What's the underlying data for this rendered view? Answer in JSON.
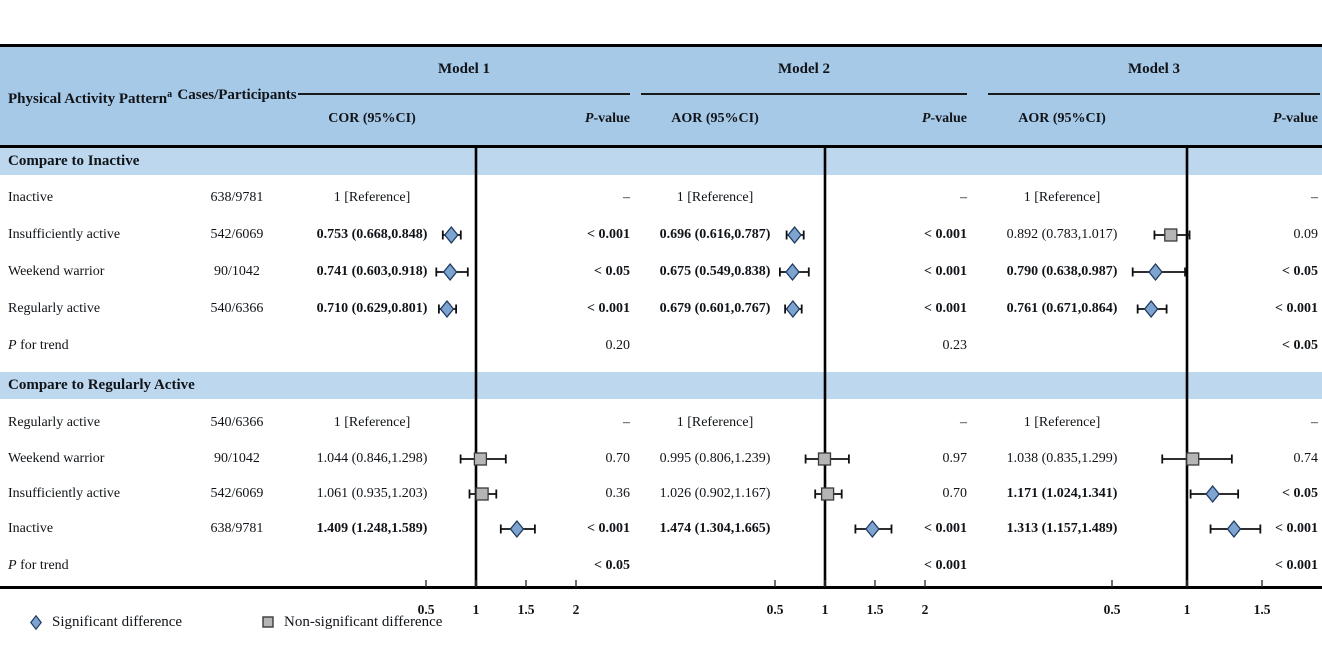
{
  "header": {
    "activity_label": "Physical Activity Pattern",
    "activity_sup": "a",
    "cases_label": "Cases/Participants",
    "p_italic": "P",
    "p_rest": "-value",
    "models": [
      {
        "label": "Model 1",
        "or_header": "COR (95%CI)"
      },
      {
        "label": "Model 2",
        "or_header": "AOR (95%CI)"
      },
      {
        "label": "Model 3",
        "or_header": "AOR (95%CI)"
      }
    ]
  },
  "labels": {
    "trend_p": "P",
    "trend_rest": " for trend"
  },
  "sections": [
    {
      "title": "Compare to Inactive",
      "rows": [
        {
          "label": "Inactive",
          "cases": "638/9781",
          "m1or": "1 [Reference]",
          "m1p": "–",
          "m2or": "1 [Reference]",
          "m2p": "–",
          "m3or": "1 [Reference]",
          "m3p": "–"
        },
        {
          "label": "Insufficiently active",
          "cases": "542/6069",
          "m1or": "0.753 (0.668,0.848)",
          "m1p": "< 0.001",
          "m2or": "0.696 (0.616,0.787)",
          "m2p": "< 0.001",
          "m3or": "0.892 (0.783,1.017)",
          "m3p": "0.09"
        },
        {
          "label": "Weekend warrior",
          "cases": "90/1042",
          "m1or": "0.741 (0.603,0.918)",
          "m1p": "< 0.05",
          "m2or": "0.675 (0.549,0.838)",
          "m2p": "< 0.001",
          "m3or": "0.790 (0.638,0.987)",
          "m3p": "< 0.05"
        },
        {
          "label": "Regularly active",
          "cases": "540/6366",
          "m1or": "0.710 (0.629,0.801)",
          "m1p": "< 0.001",
          "m2or": "0.679 (0.601,0.767)",
          "m2p": "< 0.001",
          "m3or": "0.761 (0.671,0.864)",
          "m3p": "< 0.001"
        }
      ],
      "trend": {
        "p1": "0.20",
        "p2": "0.23",
        "p3": "< 0.05"
      }
    },
    {
      "title": "Compare to Regularly Active",
      "rows": [
        {
          "label": "Regularly active",
          "cases": "540/6366",
          "m1or": "1 [Reference]",
          "m1p": "–",
          "m2or": "1 [Reference]",
          "m2p": "–",
          "m3or": "1 [Reference]",
          "m3p": "–"
        },
        {
          "label": "Weekend warrior",
          "cases": "90/1042",
          "m1or": "1.044 (0.846,1.298)",
          "m1p": "0.70",
          "m2or": "0.995 (0.806,1.239)",
          "m2p": "0.97",
          "m3or": "1.038 (0.835,1.299)",
          "m3p": "0.74"
        },
        {
          "label": "Insufficiently active",
          "cases": "542/6069",
          "m1or": "1.061 (0.935,1.203)",
          "m1p": "0.36",
          "m2or": "1.026 (0.902,1.167)",
          "m2p": "0.70",
          "m3or": "1.171 (1.024,1.341)",
          "m3p": "< 0.05"
        },
        {
          "label": "Inactive",
          "cases": "638/9781",
          "m1or": "1.409 (1.248,1.589)",
          "m1p": "< 0.001",
          "m2or": "1.474 (1.304,1.665)",
          "m2p": "< 0.001",
          "m3or": "1.313 (1.157,1.489)",
          "m3p": "< 0.001"
        }
      ],
      "trend": {
        "p1": "< 0.05",
        "p2": "< 0.001",
        "p3": "< 0.001"
      }
    }
  ],
  "legend": {
    "significant": "Significant difference",
    "non_significant": "Non-significant difference"
  },
  "colors": {
    "header_band": "#a7c9e8",
    "section_band": "#bdd8ee",
    "diamond_fill": "#7da3d0",
    "diamond_stroke": "#1f3a5f",
    "square_fill": "#b5b5b5",
    "square_stroke": "#3a3a3a"
  },
  "chart_data": {
    "type": "forest",
    "reference_value": 1,
    "marker_legend": {
      "diamond": "Significant difference",
      "square": "Non-significant difference"
    },
    "models": [
      {
        "name": "Model 1",
        "or_header": "COR (95%CI)",
        "ticks": [
          0.5,
          1,
          1.5,
          2
        ],
        "compare_to_inactive": [
          {
            "row": "Insufficiently active",
            "est": 0.753,
            "lo": 0.668,
            "hi": 0.848,
            "significant": true
          },
          {
            "row": "Weekend warrior",
            "est": 0.741,
            "lo": 0.603,
            "hi": 0.918,
            "significant": true
          },
          {
            "row": "Regularly active",
            "est": 0.71,
            "lo": 0.629,
            "hi": 0.801,
            "significant": true
          }
        ],
        "compare_to_regularly_active": [
          {
            "row": "Weekend warrior",
            "est": 1.044,
            "lo": 0.846,
            "hi": 1.298,
            "significant": false
          },
          {
            "row": "Insufficiently active",
            "est": 1.061,
            "lo": 0.935,
            "hi": 1.203,
            "significant": false
          },
          {
            "row": "Inactive",
            "est": 1.409,
            "lo": 1.248,
            "hi": 1.589,
            "significant": true
          }
        ]
      },
      {
        "name": "Model 2",
        "or_header": "AOR (95%CI)",
        "ticks": [
          0.5,
          1,
          1.5,
          2
        ],
        "compare_to_inactive": [
          {
            "row": "Insufficiently active",
            "est": 0.696,
            "lo": 0.616,
            "hi": 0.787,
            "significant": true
          },
          {
            "row": "Weekend warrior",
            "est": 0.675,
            "lo": 0.549,
            "hi": 0.838,
            "significant": true
          },
          {
            "row": "Regularly active",
            "est": 0.679,
            "lo": 0.601,
            "hi": 0.767,
            "significant": true
          }
        ],
        "compare_to_regularly_active": [
          {
            "row": "Weekend warrior",
            "est": 0.995,
            "lo": 0.806,
            "hi": 1.239,
            "significant": false
          },
          {
            "row": "Insufficiently active",
            "est": 1.026,
            "lo": 0.902,
            "hi": 1.167,
            "significant": false
          },
          {
            "row": "Inactive",
            "est": 1.474,
            "lo": 1.304,
            "hi": 1.665,
            "significant": true
          }
        ]
      },
      {
        "name": "Model 3",
        "or_header": "AOR (95%CI)",
        "ticks": [
          0.5,
          1,
          1.5
        ],
        "compare_to_inactive": [
          {
            "row": "Insufficiently active",
            "est": 0.892,
            "lo": 0.783,
            "hi": 1.017,
            "significant": false
          },
          {
            "row": "Weekend warrior",
            "est": 0.79,
            "lo": 0.638,
            "hi": 0.987,
            "significant": true
          },
          {
            "row": "Regularly active",
            "est": 0.761,
            "lo": 0.671,
            "hi": 0.864,
            "significant": true
          }
        ],
        "compare_to_regularly_active": [
          {
            "row": "Weekend warrior",
            "est": 1.038,
            "lo": 0.835,
            "hi": 1.299,
            "significant": false
          },
          {
            "row": "Insufficiently active",
            "est": 1.171,
            "lo": 1.024,
            "hi": 1.341,
            "significant": true
          },
          {
            "row": "Inactive",
            "est": 1.313,
            "lo": 1.157,
            "hi": 1.489,
            "significant": true
          }
        ]
      }
    ]
  }
}
